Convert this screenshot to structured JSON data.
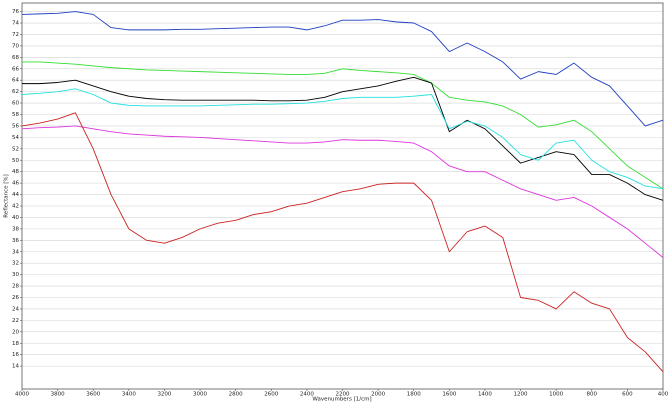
{
  "chart_data": {
    "type": "line",
    "x_label": "Wavenumbers [1/cm]",
    "y_label": "Reflectance [%]",
    "x": [
      4000,
      3900,
      3800,
      3700,
      3600,
      3500,
      3400,
      3300,
      3200,
      3100,
      3000,
      2900,
      2800,
      2700,
      2600,
      2500,
      2400,
      2300,
      2200,
      2100,
      2000,
      1900,
      1800,
      1700,
      1600,
      1500,
      1400,
      1300,
      1200,
      1100,
      1000,
      900,
      800,
      700,
      600,
      500,
      400
    ],
    "series": [
      {
        "color": "#1f3fbf",
        "values": [
          75.5,
          75.6,
          75.7,
          76,
          75.5,
          73.2,
          72.8,
          72.8,
          72.8,
          72.9,
          72.9,
          73,
          73.1,
          73.2,
          73.3,
          73.3,
          72.8,
          73.5,
          74.5,
          74.5,
          74.6,
          74.2,
          74,
          72.5,
          69,
          70.5,
          69,
          67.2,
          64.2,
          65.5,
          65,
          67,
          64.5,
          63,
          59.5,
          56,
          57
        ]
      },
      {
        "color": "#33dd33",
        "values": [
          67.2,
          67.2,
          67,
          66.8,
          66.5,
          66.2,
          66,
          65.8,
          65.7,
          65.6,
          65.5,
          65.4,
          65.3,
          65.2,
          65.1,
          65,
          65,
          65.2,
          66,
          65.7,
          65.5,
          65.3,
          65,
          63.5,
          61,
          60.5,
          60.2,
          59.5,
          58,
          55.8,
          56.2,
          57,
          55,
          52,
          49,
          47,
          45
        ]
      },
      {
        "color": "#000000",
        "values": [
          63.4,
          63.4,
          63.6,
          64,
          63,
          62,
          61.2,
          60.8,
          60.6,
          60.5,
          60.5,
          60.5,
          60.5,
          60.5,
          60.4,
          60.4,
          60.5,
          61,
          62,
          62.5,
          63,
          63.8,
          64.5,
          63.5,
          55,
          57,
          55.5,
          52.5,
          49.5,
          50.5,
          51.5,
          51,
          47.5,
          47.5,
          46,
          44,
          43
        ]
      },
      {
        "color": "#22e0e0",
        "values": [
          61.5,
          61.7,
          62,
          62.5,
          61.5,
          60,
          59.6,
          59.5,
          59.5,
          59.5,
          59.5,
          59.6,
          59.7,
          59.8,
          59.8,
          59.9,
          60,
          60.3,
          60.8,
          61,
          61,
          61,
          61.2,
          61.5,
          55.5,
          56.8,
          56,
          54,
          51,
          50,
          53,
          53.5,
          50,
          48,
          47,
          45.5,
          45
        ]
      },
      {
        "color": "#dd33dd",
        "values": [
          55.5,
          55.7,
          55.8,
          56,
          55.5,
          55,
          54.6,
          54.4,
          54.2,
          54.1,
          54,
          53.8,
          53.6,
          53.4,
          53.2,
          53,
          53,
          53.2,
          53.6,
          53.5,
          53.5,
          53.3,
          53,
          51.5,
          49,
          48,
          48,
          46.5,
          45,
          44,
          43,
          43.5,
          42,
          40,
          38,
          35.5,
          33
        ]
      },
      {
        "color": "#cc2222",
        "values": [
          56,
          56.5,
          57.2,
          58.3,
          52,
          44,
          38,
          36,
          35.5,
          36.5,
          38,
          39,
          39.5,
          40.5,
          41,
          42,
          42.5,
          43.5,
          44.5,
          45,
          45.8,
          46,
          46,
          43,
          34,
          37.5,
          38.5,
          36.5,
          26,
          25.5,
          24,
          27,
          25,
          24,
          19,
          16.5,
          13
        ]
      }
    ],
    "xlim": [
      4000,
      400
    ],
    "xticks": [
      4000,
      3800,
      3600,
      3400,
      3200,
      3000,
      2800,
      2600,
      2400,
      2200,
      2000,
      1800,
      1600,
      1400,
      1200,
      1000,
      800,
      600,
      400
    ],
    "ylim": [
      10,
      77.5
    ],
    "yticks": [
      14,
      16,
      18,
      20,
      22,
      24,
      26,
      28,
      30,
      32,
      34,
      36,
      38,
      40,
      42,
      44,
      46,
      48,
      50,
      52,
      54,
      56,
      58,
      60,
      62,
      64,
      66,
      68,
      70,
      72,
      74,
      76
    ],
    "grid": true
  }
}
